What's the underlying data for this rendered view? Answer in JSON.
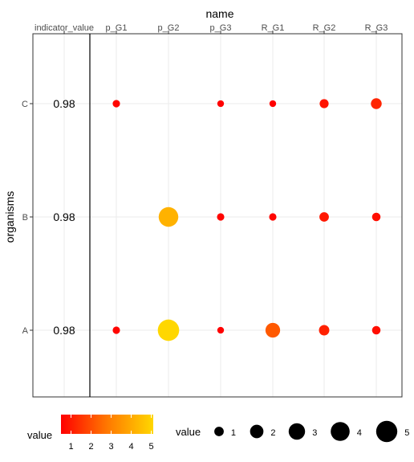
{
  "chart_data": {
    "type": "scatter",
    "title": "",
    "xlabel": "name",
    "ylabel": "organisms",
    "categories": [
      "indicator_value",
      "p_G1",
      "p_G2",
      "p_G3",
      "R_G1",
      "R_G2",
      "R_G3"
    ],
    "rows": [
      "C",
      "B",
      "A"
    ],
    "indicator_values": {
      "C": "0.98",
      "B": "0.98",
      "A": "0.98"
    },
    "points": [
      {
        "organism": "C",
        "name": "p_G1",
        "value": 0.6
      },
      {
        "organism": "C",
        "name": "p_G3",
        "value": 0.5
      },
      {
        "organism": "C",
        "name": "R_G1",
        "value": 0.5
      },
      {
        "organism": "C",
        "name": "R_G2",
        "value": 0.9
      },
      {
        "organism": "C",
        "name": "R_G3",
        "value": 1.3
      },
      {
        "organism": "B",
        "name": "p_G2",
        "value": 4.3
      },
      {
        "organism": "B",
        "name": "p_G3",
        "value": 0.6
      },
      {
        "organism": "B",
        "name": "R_G1",
        "value": 0.6
      },
      {
        "organism": "B",
        "name": "R_G2",
        "value": 1.0
      },
      {
        "organism": "B",
        "name": "R_G3",
        "value": 0.8
      },
      {
        "organism": "A",
        "name": "p_G1",
        "value": 0.6
      },
      {
        "organism": "A",
        "name": "p_G2",
        "value": 5.1
      },
      {
        "organism": "A",
        "name": "p_G3",
        "value": 0.5
      },
      {
        "organism": "A",
        "name": "R_G1",
        "value": 2.4
      },
      {
        "organism": "A",
        "name": "R_G2",
        "value": 1.2
      },
      {
        "organism": "A",
        "name": "R_G3",
        "value": 0.8
      }
    ],
    "color_scale": {
      "low": "#ff0000",
      "high": "#ffd700",
      "min": 0.5,
      "max": 5.1
    },
    "grid": true,
    "legend_position": "bottom",
    "legends": {
      "color": {
        "title": "value",
        "breaks": [
          "1",
          "2",
          "3",
          "4",
          "5"
        ]
      },
      "size": {
        "title": "value",
        "breaks": [
          "1",
          "2",
          "3",
          "4",
          "5"
        ]
      }
    }
  }
}
